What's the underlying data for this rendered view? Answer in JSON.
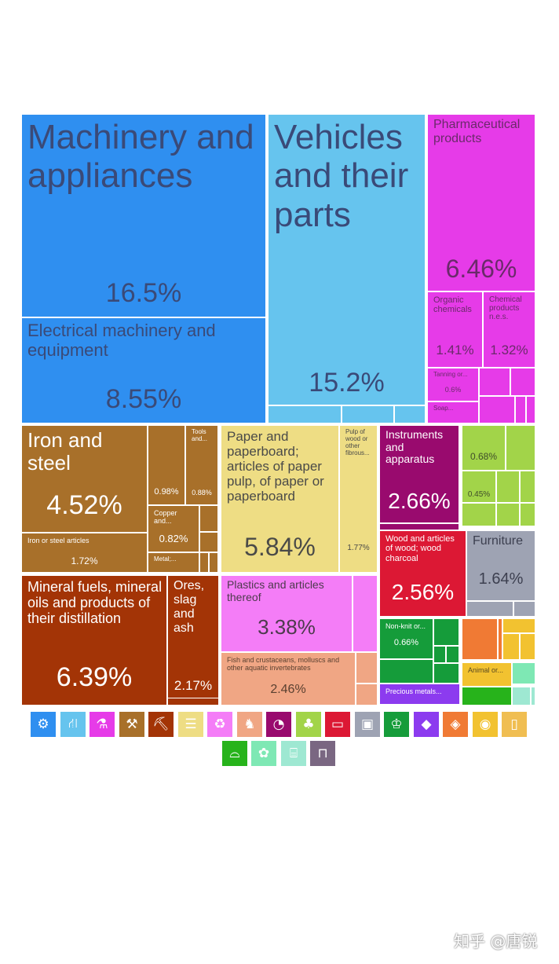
{
  "chart_data": {
    "type": "treemap",
    "unit": "%",
    "tiles": [
      {
        "id": "machinery",
        "label": "Machinery and appliances",
        "value": "16.5%",
        "color": "#2f8ff0"
      },
      {
        "id": "electrical",
        "label": "Electrical machinery and equipment",
        "value": "8.55%",
        "color": "#2f8ff0"
      },
      {
        "id": "vehicles",
        "label": "Vehicles and their parts",
        "value": "15.2%",
        "color": "#66c4ee"
      },
      {
        "id": "pharma",
        "label": "Pharmaceutical products",
        "value": "6.46%",
        "color": "#e63be8"
      },
      {
        "id": "organic",
        "label": "Organic chemicals",
        "value": "1.41%",
        "color": "#e63be8"
      },
      {
        "id": "chemical",
        "label": "Chemical products n.e.s.",
        "value": "1.32%",
        "color": "#e63be8"
      },
      {
        "id": "tanning",
        "label": "Tanning or...",
        "value": "0.6%",
        "color": "#e63be8"
      },
      {
        "id": "soap",
        "label": "Soap...",
        "value": "",
        "color": "#e63be8"
      },
      {
        "id": "iron",
        "label": "Iron and steel",
        "value": "4.52%",
        "color": "#a8702a"
      },
      {
        "id": "ironarticles",
        "label": "Iron or steel articles",
        "value": "1.72%",
        "color": "#a8702a"
      },
      {
        "id": "m098",
        "label": "",
        "value": "0.98%",
        "color": "#a8702a"
      },
      {
        "id": "tools",
        "label": "Tools and...",
        "value": "0.88%",
        "color": "#a8702a"
      },
      {
        "id": "copper",
        "label": "Copper and...",
        "value": "0.82%",
        "color": "#a8702a"
      },
      {
        "id": "metal",
        "label": "Metal;...",
        "value": "",
        "color": "#a8702a"
      },
      {
        "id": "paper",
        "label": "Paper and paperboard; articles of paper pulp, of paper or paperboard",
        "value": "5.84%",
        "color": "#eedd84"
      },
      {
        "id": "pulp",
        "label": "Pulp of wood or other fibrous...",
        "value": "1.77%",
        "color": "#eedd84"
      },
      {
        "id": "instruments",
        "label": "Instruments and apparatus",
        "value": "2.66%",
        "color": "#990a6e"
      },
      {
        "id": "g068",
        "label": "",
        "value": "0.68%",
        "color": "#a2d449"
      },
      {
        "id": "g045",
        "label": "",
        "value": "0.45%",
        "color": "#a2d449"
      },
      {
        "id": "wood",
        "label": "Wood and articles of wood; wood charcoal",
        "value": "2.56%",
        "color": "#dc1834"
      },
      {
        "id": "furniture",
        "label": "Furniture",
        "value": "1.64%",
        "color": "#9ea3b3"
      },
      {
        "id": "mineral",
        "label": "Mineral fuels, mineral oils and products of their distillation",
        "value": "6.39%",
        "color": "#a33406"
      },
      {
        "id": "ores",
        "label": "Ores, slag and ash",
        "value": "2.17%",
        "color": "#a33406"
      },
      {
        "id": "plastics",
        "label": "Plastics and articles thereof",
        "value": "3.38%",
        "color": "#f47df7"
      },
      {
        "id": "fish",
        "label": "Fish and crustaceans, molluscs and other aquatic invertebrates",
        "value": "2.46%",
        "color": "#f0a684"
      },
      {
        "id": "nonknit",
        "label": "Non-knit or...",
        "value": "0.66%",
        "color": "#159c3a"
      },
      {
        "id": "precious",
        "label": "Precious metals...",
        "value": "",
        "color": "#8c3bef"
      },
      {
        "id": "animal",
        "label": "Animal or...",
        "value": "",
        "color": "#f2c230"
      }
    ],
    "legend_icons": [
      {
        "name": "machinery-icon",
        "glyph": "⚙",
        "color": "#2f8ff0"
      },
      {
        "name": "vehicles-icon",
        "glyph": "⛙",
        "color": "#66c4ee"
      },
      {
        "name": "chemicals-icon",
        "glyph": "⚗",
        "color": "#e63be8"
      },
      {
        "name": "metals-icon",
        "glyph": "⚒",
        "color": "#a8702a"
      },
      {
        "name": "minerals-icon",
        "glyph": "⛏",
        "color": "#a33406"
      },
      {
        "name": "paper-icon",
        "glyph": "☰",
        "color": "#eedd84"
      },
      {
        "name": "plastics-icon",
        "glyph": "♻",
        "color": "#f47df7"
      },
      {
        "name": "animal-products-icon",
        "glyph": "♞",
        "color": "#f0a684"
      },
      {
        "name": "instruments-icon",
        "glyph": "◔",
        "color": "#990a6e"
      },
      {
        "name": "vegetable-products-icon",
        "glyph": "♣",
        "color": "#a2d449"
      },
      {
        "name": "wood-icon",
        "glyph": "▭",
        "color": "#dc1834"
      },
      {
        "name": "miscellaneous-icon",
        "glyph": "▣",
        "color": "#9ea3b3"
      },
      {
        "name": "textiles-icon",
        "glyph": "♔",
        "color": "#159c3a"
      },
      {
        "name": "precious-metals-icon",
        "glyph": "◆",
        "color": "#8c3bef"
      },
      {
        "name": "stone-glass-icon",
        "glyph": "◈",
        "color": "#f07a34"
      },
      {
        "name": "foodstuffs-icon",
        "glyph": "◉",
        "color": "#f2c230"
      },
      {
        "name": "weapons-icon",
        "glyph": "▯",
        "color": "#f0be52"
      },
      {
        "name": "footwear-icon",
        "glyph": "⌓",
        "color": "#27b31b"
      },
      {
        "name": "animal-hides-icon",
        "glyph": "✿",
        "color": "#7ee8b4"
      },
      {
        "name": "arts-icon",
        "glyph": "⌸",
        "color": "#9ee8d2"
      },
      {
        "name": "works-of-art-icon",
        "glyph": "⊓",
        "color": "#7a6782"
      }
    ]
  },
  "watermark": "知乎 @唐锐"
}
